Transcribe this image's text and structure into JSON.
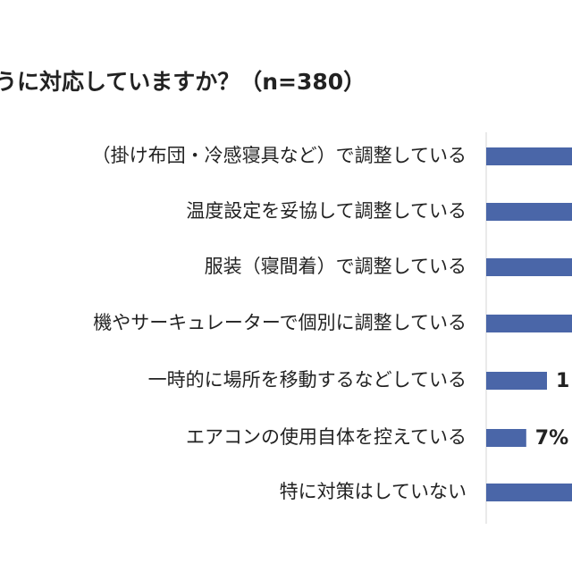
{
  "chart_data": {
    "type": "bar",
    "orientation": "horizontal",
    "title": "うに対応していますか？（n=380）",
    "categories": [
      "（掛け布団・冷感寝具など）で調整している",
      "温度設定を妥協して調整している",
      "服装（寝間着）で調整している",
      "機やサーキュレーターで個別に調整している",
      "一時的に場所を移動するなどしている",
      "エアコンの使用自体を控えている",
      "特に対策はしていない"
    ],
    "value_labels": [
      "",
      "",
      "",
      "",
      "1",
      "7%",
      ""
    ],
    "values": [
      null,
      null,
      null,
      null,
      null,
      7,
      null
    ],
    "bar_color": "#4a66a8",
    "grid": false,
    "legend": "none"
  }
}
